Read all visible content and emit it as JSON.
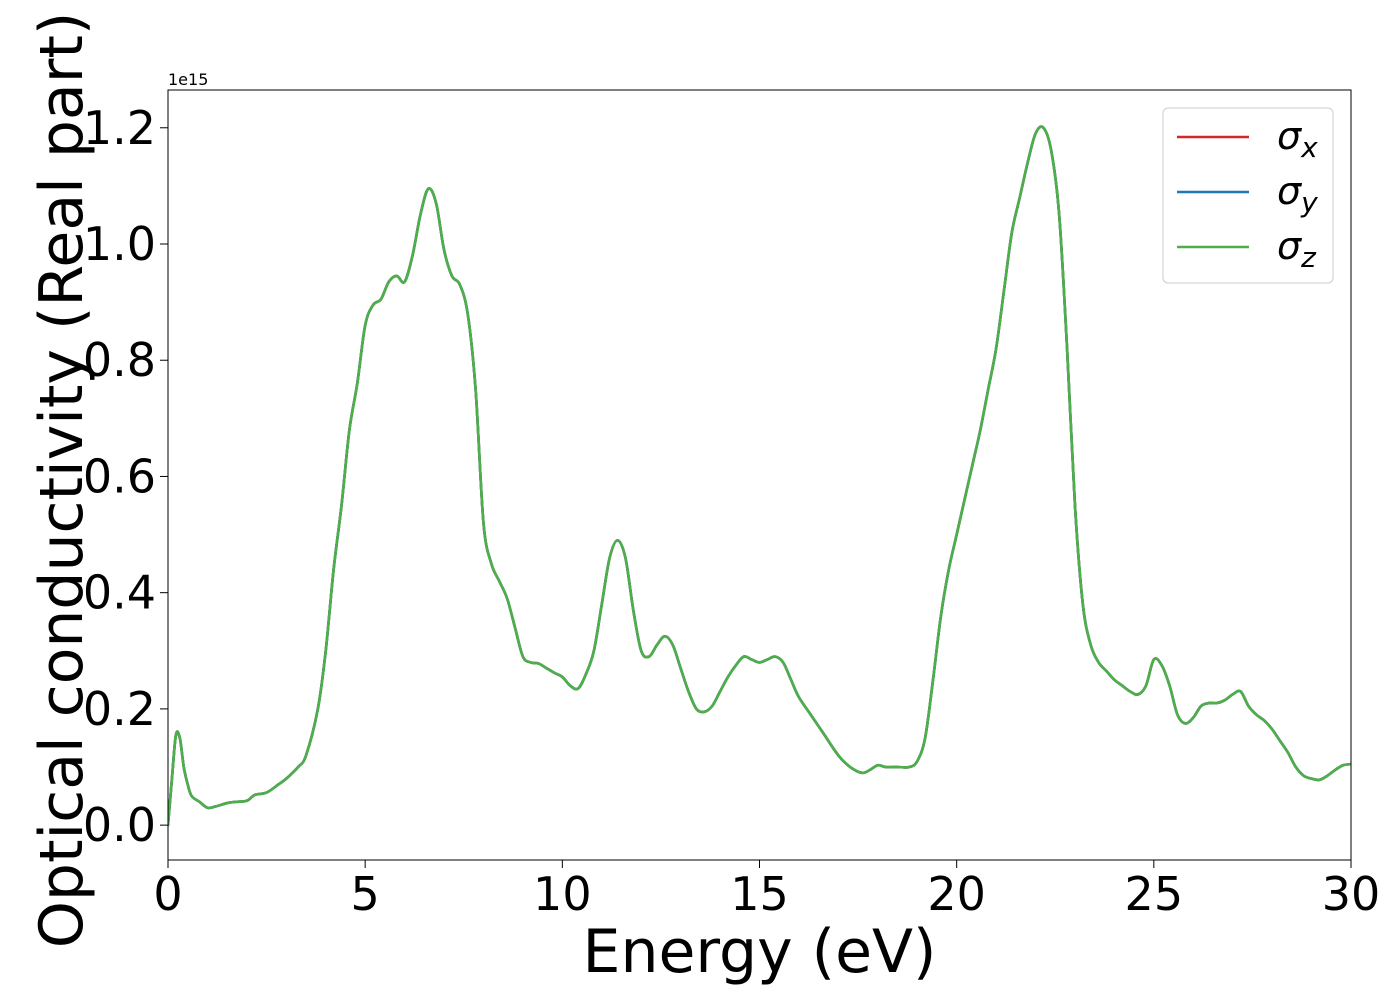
{
  "chart_data": {
    "type": "line",
    "title": "",
    "xlabel": "Energy (eV)",
    "ylabel": "Optical conductivity (Real part)",
    "y_offset_label": "1e15",
    "xlim": [
      0,
      30
    ],
    "ylim": [
      -0.06,
      1.265
    ],
    "xticks": [
      0,
      5,
      10,
      15,
      20,
      25,
      30
    ],
    "yticks": [
      0.0,
      0.2,
      0.4,
      0.6,
      0.8,
      1.0,
      1.2
    ],
    "x_tick_labels": [
      "0",
      "5",
      "10",
      "15",
      "20",
      "25",
      "30"
    ],
    "y_tick_labels": [
      "0.0",
      "0.2",
      "0.4",
      "0.6",
      "0.8",
      "1.0",
      "1.2"
    ],
    "grid": false,
    "legend_position": "top-right",
    "x": [
      0,
      0.1,
      0.2,
      0.3,
      0.4,
      0.5,
      0.6,
      0.8,
      1.0,
      1.2,
      1.5,
      1.7,
      2.0,
      2.2,
      2.5,
      2.8,
      3.0,
      3.3,
      3.5,
      3.8,
      4.0,
      4.2,
      4.4,
      4.6,
      4.8,
      5.0,
      5.2,
      5.4,
      5.6,
      5.8,
      6.0,
      6.2,
      6.4,
      6.6,
      6.8,
      7.0,
      7.2,
      7.4,
      7.6,
      7.8,
      8.0,
      8.2,
      8.4,
      8.6,
      8.8,
      9.0,
      9.2,
      9.4,
      9.6,
      9.8,
      10.0,
      10.2,
      10.4,
      10.6,
      10.8,
      11.0,
      11.2,
      11.4,
      11.6,
      11.8,
      12.0,
      12.2,
      12.4,
      12.6,
      12.8,
      13.0,
      13.2,
      13.4,
      13.6,
      13.8,
      14.0,
      14.2,
      14.4,
      14.6,
      14.8,
      15.0,
      15.2,
      15.4,
      15.6,
      15.8,
      16.0,
      16.3,
      16.6,
      17.0,
      17.3,
      17.6,
      17.8,
      18.0,
      18.2,
      18.5,
      18.8,
      19.0,
      19.2,
      19.4,
      19.6,
      19.8,
      20.0,
      20.2,
      20.4,
      20.6,
      20.8,
      21.0,
      21.2,
      21.4,
      21.6,
      21.8,
      22.0,
      22.2,
      22.4,
      22.6,
      22.8,
      23.0,
      23.2,
      23.4,
      23.6,
      23.8,
      24.0,
      24.2,
      24.4,
      24.6,
      24.8,
      25.0,
      25.2,
      25.4,
      25.6,
      25.8,
      26.0,
      26.2,
      26.4,
      26.6,
      26.8,
      27.0,
      27.2,
      27.4,
      27.6,
      27.8,
      28.0,
      28.2,
      28.4,
      28.6,
      28.8,
      29.0,
      29.2,
      29.4,
      29.6,
      29.8,
      30.0
    ],
    "series": [
      {
        "name": "σx",
        "color": "#d62728",
        "values": [
          0.0,
          0.08,
          0.155,
          0.15,
          0.1,
          0.07,
          0.05,
          0.04,
          0.03,
          0.032,
          0.038,
          0.04,
          0.042,
          0.052,
          0.056,
          0.07,
          0.08,
          0.1,
          0.12,
          0.2,
          0.3,
          0.44,
          0.55,
          0.68,
          0.76,
          0.86,
          0.895,
          0.905,
          0.935,
          0.945,
          0.935,
          0.98,
          1.05,
          1.095,
          1.07,
          0.99,
          0.945,
          0.93,
          0.88,
          0.75,
          0.52,
          0.45,
          0.42,
          0.39,
          0.34,
          0.29,
          0.28,
          0.278,
          0.27,
          0.262,
          0.255,
          0.24,
          0.235,
          0.26,
          0.3,
          0.38,
          0.46,
          0.49,
          0.46,
          0.37,
          0.3,
          0.29,
          0.31,
          0.325,
          0.31,
          0.27,
          0.23,
          0.2,
          0.195,
          0.205,
          0.23,
          0.255,
          0.275,
          0.29,
          0.285,
          0.28,
          0.285,
          0.29,
          0.28,
          0.25,
          0.22,
          0.19,
          0.16,
          0.12,
          0.1,
          0.09,
          0.095,
          0.103,
          0.1,
          0.1,
          0.1,
          0.11,
          0.15,
          0.25,
          0.36,
          0.44,
          0.5,
          0.56,
          0.62,
          0.68,
          0.75,
          0.82,
          0.92,
          1.02,
          1.08,
          1.14,
          1.19,
          1.2,
          1.16,
          1.05,
          0.82,
          0.55,
          0.38,
          0.31,
          0.28,
          0.265,
          0.25,
          0.24,
          0.23,
          0.225,
          0.24,
          0.285,
          0.275,
          0.24,
          0.19,
          0.175,
          0.185,
          0.205,
          0.21,
          0.21,
          0.215,
          0.225,
          0.23,
          0.205,
          0.19,
          0.18,
          0.165,
          0.145,
          0.125,
          0.1,
          0.085,
          0.08,
          0.078,
          0.085,
          0.095,
          0.103,
          0.105
        ]
      },
      {
        "name": "σy",
        "color": "#1f77b4",
        "values": [
          0.0,
          0.08,
          0.155,
          0.15,
          0.1,
          0.07,
          0.05,
          0.04,
          0.03,
          0.032,
          0.038,
          0.04,
          0.042,
          0.052,
          0.056,
          0.07,
          0.08,
          0.1,
          0.12,
          0.2,
          0.3,
          0.44,
          0.55,
          0.68,
          0.76,
          0.86,
          0.895,
          0.905,
          0.935,
          0.945,
          0.935,
          0.98,
          1.05,
          1.095,
          1.07,
          0.99,
          0.945,
          0.93,
          0.88,
          0.75,
          0.52,
          0.45,
          0.42,
          0.39,
          0.34,
          0.29,
          0.28,
          0.278,
          0.27,
          0.262,
          0.255,
          0.24,
          0.235,
          0.26,
          0.3,
          0.38,
          0.46,
          0.49,
          0.46,
          0.37,
          0.3,
          0.29,
          0.31,
          0.325,
          0.31,
          0.27,
          0.23,
          0.2,
          0.195,
          0.205,
          0.23,
          0.255,
          0.275,
          0.29,
          0.285,
          0.28,
          0.285,
          0.29,
          0.28,
          0.25,
          0.22,
          0.19,
          0.16,
          0.12,
          0.1,
          0.09,
          0.095,
          0.103,
          0.1,
          0.1,
          0.1,
          0.11,
          0.15,
          0.25,
          0.36,
          0.44,
          0.5,
          0.56,
          0.62,
          0.68,
          0.75,
          0.82,
          0.92,
          1.02,
          1.08,
          1.14,
          1.19,
          1.2,
          1.16,
          1.05,
          0.82,
          0.55,
          0.38,
          0.31,
          0.28,
          0.265,
          0.25,
          0.24,
          0.23,
          0.225,
          0.24,
          0.285,
          0.275,
          0.24,
          0.19,
          0.175,
          0.185,
          0.205,
          0.21,
          0.21,
          0.215,
          0.225,
          0.23,
          0.205,
          0.19,
          0.18,
          0.165,
          0.145,
          0.125,
          0.1,
          0.085,
          0.08,
          0.078,
          0.085,
          0.095,
          0.103,
          0.105
        ]
      },
      {
        "name": "σz",
        "color": "#4daf4a",
        "values": [
          0.0,
          0.08,
          0.155,
          0.15,
          0.1,
          0.07,
          0.05,
          0.04,
          0.03,
          0.032,
          0.038,
          0.04,
          0.042,
          0.052,
          0.056,
          0.07,
          0.08,
          0.1,
          0.12,
          0.2,
          0.3,
          0.44,
          0.55,
          0.68,
          0.76,
          0.86,
          0.895,
          0.905,
          0.935,
          0.945,
          0.935,
          0.98,
          1.05,
          1.095,
          1.07,
          0.99,
          0.945,
          0.93,
          0.88,
          0.75,
          0.52,
          0.45,
          0.42,
          0.39,
          0.34,
          0.29,
          0.28,
          0.278,
          0.27,
          0.262,
          0.255,
          0.24,
          0.235,
          0.26,
          0.3,
          0.38,
          0.46,
          0.49,
          0.46,
          0.37,
          0.3,
          0.29,
          0.31,
          0.325,
          0.31,
          0.27,
          0.23,
          0.2,
          0.195,
          0.205,
          0.23,
          0.255,
          0.275,
          0.29,
          0.285,
          0.28,
          0.285,
          0.29,
          0.28,
          0.25,
          0.22,
          0.19,
          0.16,
          0.12,
          0.1,
          0.09,
          0.095,
          0.103,
          0.1,
          0.1,
          0.1,
          0.11,
          0.15,
          0.25,
          0.36,
          0.44,
          0.5,
          0.56,
          0.62,
          0.68,
          0.75,
          0.82,
          0.92,
          1.02,
          1.08,
          1.14,
          1.19,
          1.2,
          1.16,
          1.05,
          0.82,
          0.55,
          0.38,
          0.31,
          0.28,
          0.265,
          0.25,
          0.24,
          0.23,
          0.225,
          0.24,
          0.285,
          0.275,
          0.24,
          0.19,
          0.175,
          0.185,
          0.205,
          0.21,
          0.21,
          0.215,
          0.225,
          0.23,
          0.205,
          0.19,
          0.18,
          0.165,
          0.145,
          0.125,
          0.1,
          0.085,
          0.08,
          0.078,
          0.085,
          0.095,
          0.103,
          0.105
        ]
      }
    ],
    "legend": [
      {
        "symbol": "σ",
        "sub": "x",
        "color": "#d62728"
      },
      {
        "symbol": "σ",
        "sub": "y",
        "color": "#1f77b4"
      },
      {
        "symbol": "σ",
        "sub": "z",
        "color": "#4daf4a"
      }
    ]
  }
}
